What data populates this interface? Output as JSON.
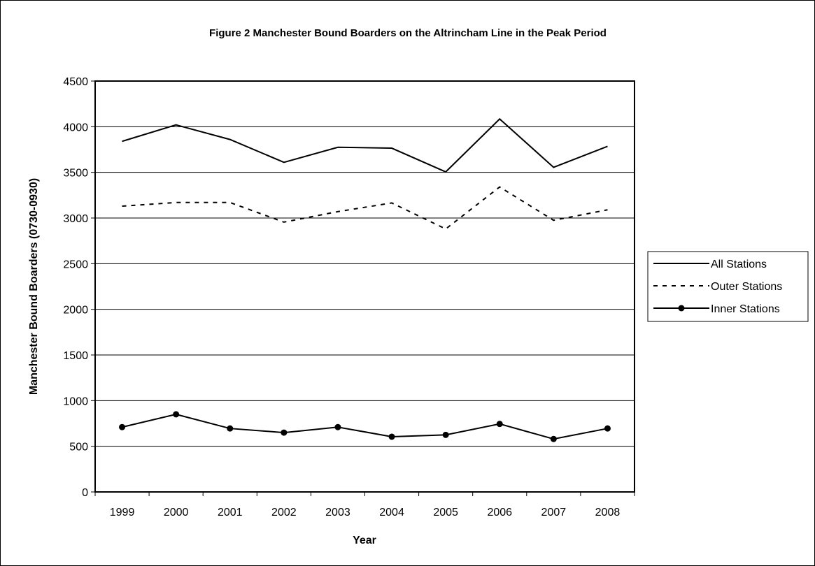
{
  "chart_data": {
    "type": "line",
    "title": "Figure 2 Manchester Bound Boarders on the Altrincham Line in the Peak Period",
    "xlabel": "Year",
    "ylabel": "Manchester Bound Boarders (0730-0930)",
    "ylim": [
      0,
      4500
    ],
    "yticks": [
      0,
      500,
      1000,
      1500,
      2000,
      2500,
      3000,
      3500,
      4000,
      4500
    ],
    "grid": "horizontal",
    "legend_position": "right",
    "categories": [
      "1999",
      "2000",
      "2001",
      "2002",
      "2003",
      "2004",
      "2005",
      "2006",
      "2007",
      "2008"
    ],
    "series": [
      {
        "name": "All Stations",
        "style": "solid",
        "marker": "none",
        "color": "#000000",
        "values": [
          3840,
          4020,
          3860,
          3610,
          3775,
          3765,
          3505,
          4085,
          3555,
          3785
        ]
      },
      {
        "name": "Outer Stations",
        "style": "dashed",
        "marker": "none",
        "color": "#000000",
        "values": [
          3130,
          3170,
          3170,
          2955,
          3070,
          3165,
          2880,
          3340,
          2975,
          3090
        ]
      },
      {
        "name": "Inner Stations",
        "style": "solid",
        "marker": "circle",
        "color": "#000000",
        "values": [
          710,
          850,
          695,
          650,
          710,
          605,
          625,
          745,
          580,
          695
        ]
      }
    ]
  }
}
